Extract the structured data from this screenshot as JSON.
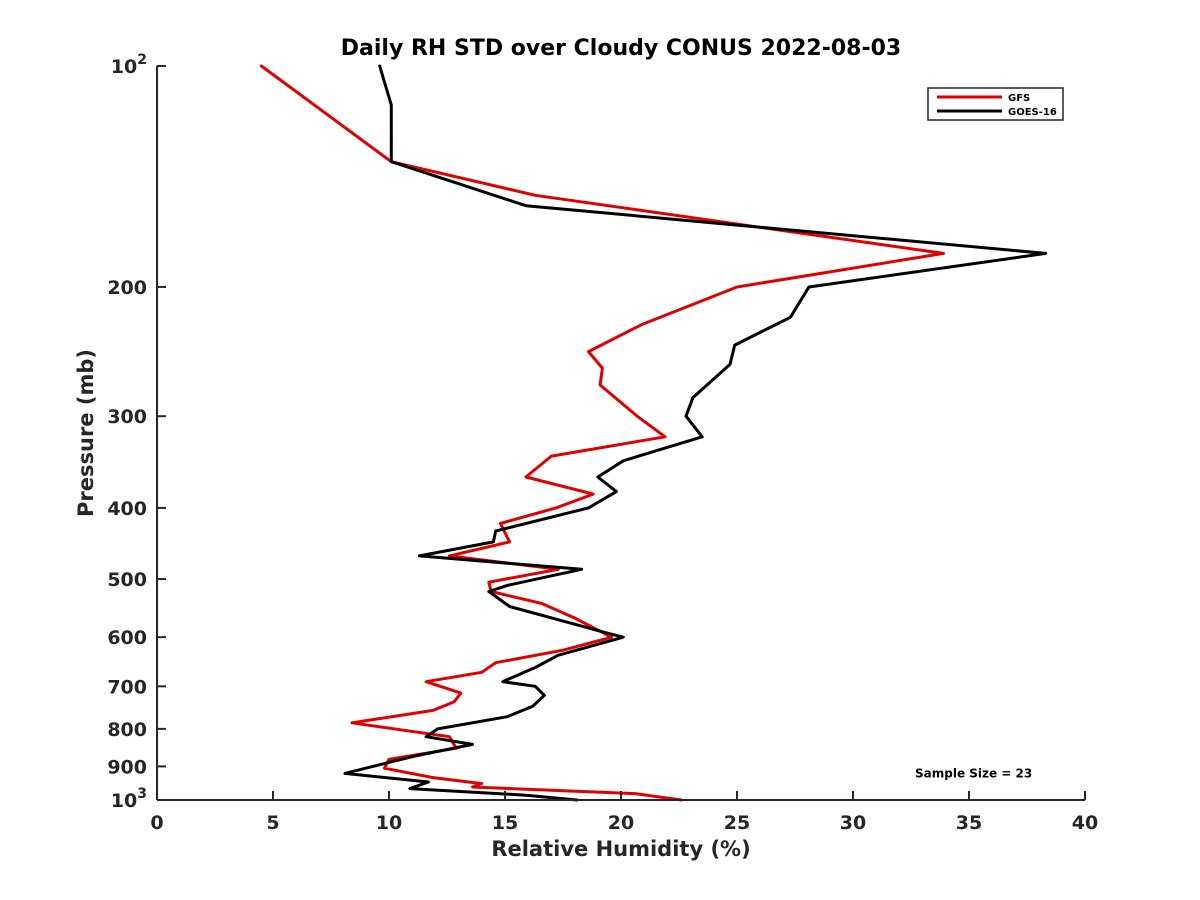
{
  "chart_data": {
    "type": "line",
    "title": "Daily RH STD over Cloudy CONUS 2022-08-03",
    "xlabel": "Relative Humidity (%)",
    "ylabel": "Pressure (mb)",
    "xlim": [
      0,
      40
    ],
    "ylim": [
      100,
      1000
    ],
    "yscale": "log",
    "y_reversed": true,
    "grid": false,
    "legend_position": "top-right",
    "x_ticks": [
      {
        "value": 0,
        "label": "0"
      },
      {
        "value": 5,
        "label": "5"
      },
      {
        "value": 10,
        "label": "10"
      },
      {
        "value": 15,
        "label": "15"
      },
      {
        "value": 20,
        "label": "20"
      },
      {
        "value": 25,
        "label": "25"
      },
      {
        "value": 30,
        "label": "30"
      },
      {
        "value": 35,
        "label": "35"
      },
      {
        "value": 40,
        "label": "40"
      }
    ],
    "y_ticks": [
      {
        "value": 100,
        "label": "10",
        "sup": "2"
      },
      {
        "value": 200,
        "label": "200"
      },
      {
        "value": 300,
        "label": "300"
      },
      {
        "value": 400,
        "label": "400"
      },
      {
        "value": 500,
        "label": "500"
      },
      {
        "value": 600,
        "label": "600"
      },
      {
        "value": 700,
        "label": "700"
      },
      {
        "value": 800,
        "label": "800"
      },
      {
        "value": 900,
        "label": "900"
      },
      {
        "value": 1000,
        "label": "10",
        "sup": "3"
      }
    ],
    "series": [
      {
        "name": "GFS",
        "color": "#e00000",
        "points": [
          [
            4.5,
            100
          ],
          [
            10.1,
            135
          ],
          [
            16.3,
            150
          ],
          [
            33.9,
            180
          ],
          [
            25.0,
            200
          ],
          [
            20.9,
            225
          ],
          [
            18.6,
            245
          ],
          [
            19.2,
            258
          ],
          [
            19.1,
            272
          ],
          [
            20.7,
            300
          ],
          [
            21.9,
            320
          ],
          [
            17.0,
            340
          ],
          [
            15.9,
            363
          ],
          [
            18.8,
            383
          ],
          [
            17.2,
            400
          ],
          [
            14.8,
            420
          ],
          [
            15.2,
            445
          ],
          [
            12.6,
            465
          ],
          [
            17.3,
            485
          ],
          [
            14.3,
            505
          ],
          [
            14.4,
            520
          ],
          [
            16.6,
            540
          ],
          [
            18.0,
            565
          ],
          [
            19.6,
            600
          ],
          [
            17.5,
            625
          ],
          [
            14.6,
            650
          ],
          [
            14.0,
            670
          ],
          [
            11.6,
            690
          ],
          [
            13.1,
            715
          ],
          [
            12.8,
            735
          ],
          [
            11.9,
            755
          ],
          [
            8.4,
            785
          ],
          [
            12.6,
            820
          ],
          [
            12.9,
            850
          ],
          [
            10.0,
            880
          ],
          [
            9.8,
            905
          ],
          [
            11.9,
            932
          ],
          [
            14.0,
            950
          ],
          [
            13.6,
            960
          ],
          [
            20.6,
            980
          ],
          [
            22.6,
            1000
          ]
        ]
      },
      {
        "name": "GOES-16",
        "color": "#000000",
        "points": [
          [
            9.6,
            100
          ],
          [
            10.1,
            113
          ],
          [
            10.1,
            135
          ],
          [
            15.9,
            155
          ],
          [
            38.3,
            180
          ],
          [
            28.1,
            200
          ],
          [
            27.3,
            220
          ],
          [
            24.9,
            240
          ],
          [
            24.7,
            255
          ],
          [
            23.1,
            283
          ],
          [
            22.8,
            300
          ],
          [
            23.5,
            320
          ],
          [
            20.1,
            345
          ],
          [
            19.0,
            363
          ],
          [
            19.8,
            380
          ],
          [
            18.6,
            400
          ],
          [
            14.6,
            430
          ],
          [
            14.5,
            445
          ],
          [
            11.3,
            465
          ],
          [
            18.3,
            485
          ],
          [
            15.1,
            510
          ],
          [
            14.3,
            520
          ],
          [
            15.2,
            545
          ],
          [
            17.9,
            575
          ],
          [
            19.2,
            590
          ],
          [
            20.1,
            600
          ],
          [
            17.3,
            635
          ],
          [
            16.3,
            660
          ],
          [
            14.9,
            690
          ],
          [
            16.3,
            700
          ],
          [
            16.7,
            720
          ],
          [
            16.2,
            745
          ],
          [
            15.1,
            770
          ],
          [
            12.1,
            800
          ],
          [
            11.6,
            820
          ],
          [
            13.6,
            840
          ],
          [
            11.2,
            870
          ],
          [
            9.3,
            900
          ],
          [
            8.1,
            920
          ],
          [
            11.7,
            945
          ],
          [
            10.9,
            965
          ],
          [
            15.9,
            985
          ],
          [
            18.1,
            1000
          ]
        ]
      }
    ],
    "annotations": [
      {
        "text": "Sample Size = 23",
        "x": 35.2,
        "y": 920
      }
    ]
  }
}
